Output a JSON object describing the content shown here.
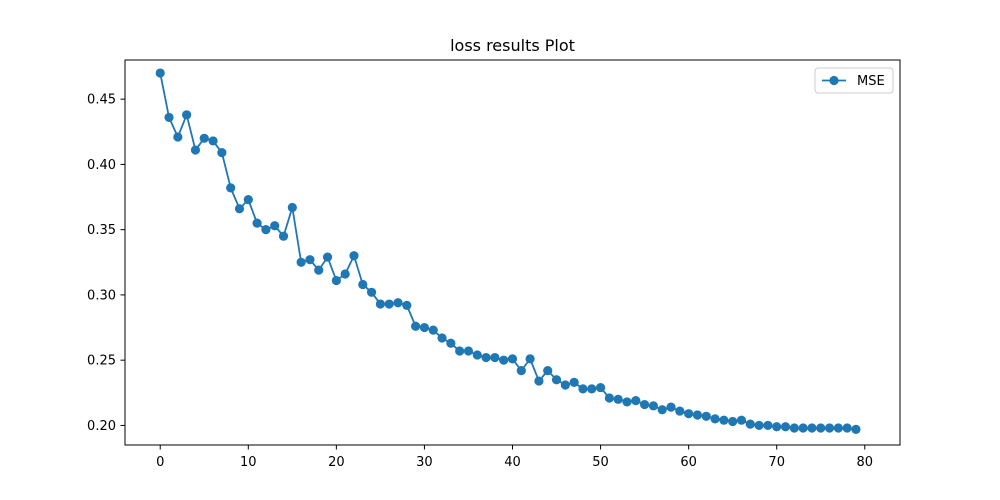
{
  "chart_data": {
    "type": "line",
    "title": "loss results Plot",
    "xlabel": "",
    "ylabel": "",
    "xlim": [
      -4,
      84
    ],
    "ylim": [
      0.185,
      0.48
    ],
    "x_ticks": [
      0,
      10,
      20,
      30,
      40,
      50,
      60,
      70,
      80
    ],
    "y_ticks": [
      0.2,
      0.25,
      0.3,
      0.35,
      0.4,
      0.45
    ],
    "x_tick_labels": [
      "0",
      "10",
      "20",
      "30",
      "40",
      "50",
      "60",
      "70",
      "80"
    ],
    "y_tick_labels": [
      "0.20",
      "0.25",
      "0.30",
      "0.35",
      "0.40",
      "0.45"
    ],
    "grid": false,
    "legend_position": "top-right",
    "colors": {
      "series": "#1f77b4",
      "axes": "#000000",
      "background": "#ffffff"
    },
    "series": [
      {
        "name": "MSE",
        "x": [
          0,
          1,
          2,
          3,
          4,
          5,
          6,
          7,
          8,
          9,
          10,
          11,
          12,
          13,
          14,
          15,
          16,
          17,
          18,
          19,
          20,
          21,
          22,
          23,
          24,
          25,
          26,
          27,
          28,
          29,
          30,
          31,
          32,
          33,
          34,
          35,
          36,
          37,
          38,
          39,
          40,
          41,
          42,
          43,
          44,
          45,
          46,
          47,
          48,
          49,
          50,
          51,
          52,
          53,
          54,
          55,
          56,
          57,
          58,
          59,
          60,
          61,
          62,
          63,
          64,
          65,
          66,
          67,
          68,
          69,
          70,
          71,
          72,
          73,
          74,
          75,
          76,
          77,
          78,
          79
        ],
        "values": [
          0.47,
          0.436,
          0.421,
          0.438,
          0.411,
          0.42,
          0.418,
          0.409,
          0.382,
          0.366,
          0.373,
          0.355,
          0.35,
          0.353,
          0.345,
          0.367,
          0.325,
          0.327,
          0.319,
          0.329,
          0.311,
          0.316,
          0.33,
          0.308,
          0.302,
          0.293,
          0.293,
          0.294,
          0.292,
          0.276,
          0.275,
          0.273,
          0.267,
          0.263,
          0.257,
          0.257,
          0.254,
          0.252,
          0.252,
          0.25,
          0.251,
          0.242,
          0.251,
          0.234,
          0.242,
          0.235,
          0.231,
          0.233,
          0.228,
          0.228,
          0.229,
          0.221,
          0.22,
          0.218,
          0.219,
          0.216,
          0.215,
          0.212,
          0.214,
          0.211,
          0.209,
          0.208,
          0.207,
          0.205,
          0.204,
          0.203,
          0.204,
          0.201,
          0.2,
          0.2,
          0.199,
          0.199,
          0.198,
          0.198,
          0.198,
          0.198,
          0.198,
          0.198,
          0.198,
          0.197
        ]
      }
    ]
  }
}
